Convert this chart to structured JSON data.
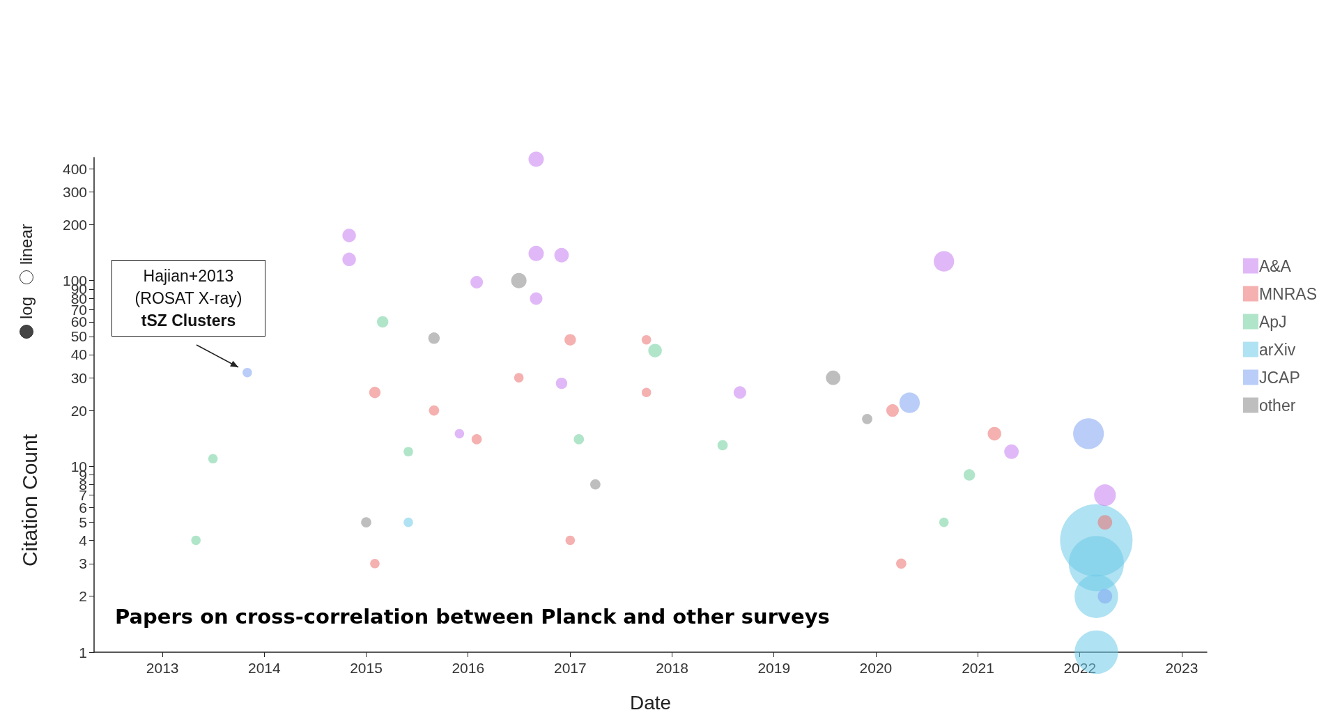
{
  "chart_data": {
    "type": "bubble",
    "title": "Papers on cross-correlation between Planck and other surveys",
    "xlabel": "Date",
    "ylabel": "Citation Count",
    "log": "y",
    "legend": "right",
    "grid": false,
    "marker": "circle",
    "xlim": [
      "2012-05",
      "2023-04"
    ],
    "xticks": [
      "2013",
      "2014",
      "2015",
      "2016",
      "2017",
      "2018",
      "2019",
      "2020",
      "2021",
      "2022",
      "2023"
    ],
    "ylim": [
      1,
      460
    ],
    "yticks": [
      1,
      2,
      3,
      4,
      5,
      6,
      7,
      8,
      9,
      10,
      20,
      30,
      40,
      50,
      60,
      70,
      80,
      90,
      100,
      200,
      300,
      400
    ],
    "annotations": [
      "Hajian+2013\n(ROSAT X-ray)\ntSZ Clusters",
      "log",
      "linear"
    ],
    "series": [
      {
        "name": "A&A",
        "color": "#c77df0",
        "x": [
          "2014-11",
          "2014-11",
          "2016-09",
          "2016-09",
          "2016-12",
          "2016-02",
          "2016-09",
          "2016-12",
          "2015-12",
          "2018-09",
          "2020-09",
          "2021-05",
          "2022-04"
        ],
        "values": [
          175,
          130,
          450,
          140,
          137,
          98,
          80,
          28,
          15,
          25,
          127,
          12,
          7
        ],
        "sizes": [
          0.035,
          0.035,
          0.045,
          0.045,
          0.04,
          0.03,
          0.03,
          0.025,
          0.017,
          0.03,
          0.08,
          0.04,
          0.09
        ]
      },
      {
        "name": "MNRAS",
        "color": "#ec6f6f",
        "x": [
          "2015-02",
          "2015-02",
          "2015-09",
          "2016-02",
          "2016-07",
          "2017-01",
          "2017-01",
          "2017-10",
          "2017-10",
          "2020-03",
          "2020-04",
          "2021-03",
          "2022-04"
        ],
        "values": [
          25,
          3,
          20,
          14,
          30,
          48,
          4,
          48,
          25,
          20,
          3,
          15,
          5
        ],
        "sizes": [
          0.025,
          0.017,
          0.02,
          0.02,
          0.017,
          0.025,
          0.017,
          0.017,
          0.017,
          0.03,
          0.02,
          0.035,
          0.04
        ]
      },
      {
        "name": "ApJ",
        "color": "#6fcf9d",
        "x": [
          "2013-05",
          "2013-07",
          "2015-03",
          "2015-06",
          "2017-02",
          "2017-11",
          "2018-07",
          "2020-12",
          "2020-09"
        ],
        "values": [
          4,
          11,
          60,
          12,
          14,
          42,
          13,
          9,
          5
        ],
        "sizes": [
          0.017,
          0.017,
          0.025,
          0.017,
          0.02,
          0.035,
          0.02,
          0.025,
          0.017
        ]
      },
      {
        "name": "arXiv",
        "color": "#6dcbe8",
        "x": [
          "2015-06",
          "2022-03",
          "2022-03",
          "2022-03",
          "2022-03"
        ],
        "values": [
          5,
          4,
          3,
          2,
          1
        ],
        "sizes": [
          0.017,
          1,
          0.58,
          0.36,
          0.36
        ]
      },
      {
        "name": "JCAP",
        "color": "#7fa4f2",
        "x": [
          "2013-11",
          "2020-05",
          "2022-02",
          "2022-04"
        ],
        "values": [
          32,
          22,
          15,
          2
        ],
        "sizes": [
          0.017,
          0.08,
          0.18,
          0.04
        ]
      },
      {
        "name": "other",
        "color": "#888888",
        "x": [
          "2015-01",
          "2015-09",
          "2016-07",
          "2017-04",
          "2019-08",
          "2019-12"
        ],
        "values": [
          5,
          49,
          100,
          8,
          30,
          18
        ],
        "sizes": [
          0.02,
          0.025,
          0.045,
          0.02,
          0.04,
          0.02
        ]
      }
    ]
  }
}
